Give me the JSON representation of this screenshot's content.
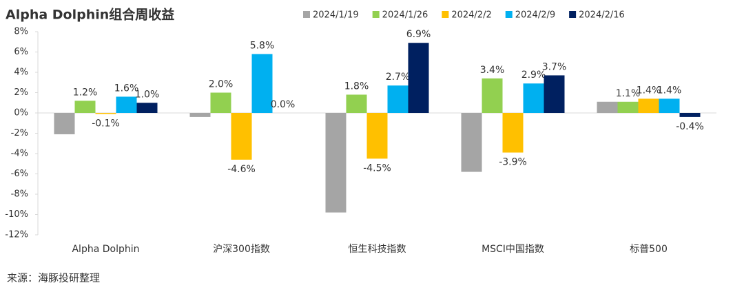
{
  "chart_data": {
    "type": "bar",
    "title": "Alpha Dolphin组合周收益",
    "source": "来源：海豚投研整理",
    "categories": [
      "Alpha Dolphin",
      "沪深300指数",
      "恒生科技指数",
      "MSCI中国指数",
      "标普500"
    ],
    "series": [
      {
        "name": "2024/1/19",
        "color": "#a5a5a5",
        "values": [
          -2.1,
          -0.4,
          -9.8,
          -5.8,
          1.1
        ]
      },
      {
        "name": "2024/1/26",
        "color": "#92d050",
        "values": [
          1.2,
          2.0,
          1.8,
          3.4,
          1.1
        ],
        "value_labels": [
          "1.2%",
          "2.0%",
          "1.8%",
          "3.4%",
          "1.1%"
        ]
      },
      {
        "name": "2024/2/2",
        "color": "#ffc000",
        "values": [
          -0.1,
          -4.6,
          -4.5,
          -3.9,
          1.4
        ],
        "value_labels": [
          "-0.1%",
          "-4.6%",
          "-4.5%",
          "-3.9%",
          "1.4%"
        ]
      },
      {
        "name": "2024/2/9",
        "color": "#00b0f0",
        "values": [
          1.6,
          5.8,
          2.7,
          2.9,
          1.4
        ],
        "value_labels": [
          "1.6%",
          "5.8%",
          "2.7%",
          "2.9%",
          "1.4%"
        ]
      },
      {
        "name": "2024/2/16",
        "color": "#002060",
        "values": [
          1.0,
          0.0,
          6.9,
          3.7,
          -0.4
        ],
        "value_labels": [
          "1.0%",
          "0.0%",
          "6.9%",
          "3.7%",
          "-0.4%"
        ]
      }
    ],
    "ylim": [
      -12,
      8
    ],
    "yticks": [
      {
        "value": -12,
        "label": "-12%"
      },
      {
        "value": -10,
        "label": "-10%"
      },
      {
        "value": -8,
        "label": "-8%"
      },
      {
        "value": -6,
        "label": "-6%"
      },
      {
        "value": -4,
        "label": "-4%"
      },
      {
        "value": -2,
        "label": "-2%"
      },
      {
        "value": 0,
        "label": "0%"
      },
      {
        "value": 2,
        "label": "2%"
      },
      {
        "value": 4,
        "label": "4%"
      },
      {
        "value": 6,
        "label": "6%"
      },
      {
        "value": 8,
        "label": "8%"
      }
    ]
  }
}
